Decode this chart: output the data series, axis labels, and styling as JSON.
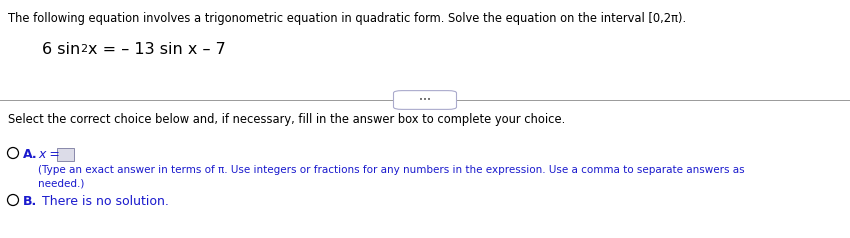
{
  "bg_color": "#ffffff",
  "text_color": "#000000",
  "blue_color": "#1a1acd",
  "line_color": "#999999",
  "header_text": "The following equation involves a trigonometric equation in quadratic form. Solve the equation on the interval [0,2π).",
  "select_text": "Select the correct choice below and, if necessary, fill in the answer box to complete your choice.",
  "option_a_hint": "(Type an exact answer in terms of π. Use integers or fractions for any numbers in the expression. Use a comma to separate answers as",
  "option_a_hint2": "needed.)",
  "option_b_text": "There is no solution.",
  "fig_width": 8.5,
  "fig_height": 2.38,
  "dpi": 100
}
